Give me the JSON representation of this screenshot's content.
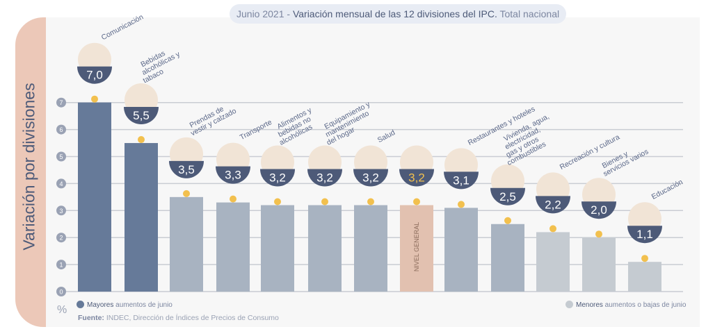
{
  "title": {
    "date": "Junio 2021 - ",
    "main": "Variación mensual de las 12 divisiones del IPC.",
    "scope": " Total nacional"
  },
  "chart_data": {
    "type": "bar",
    "title": "Junio 2021 - Variación mensual de las 12 divisiones del IPC. Total nacional",
    "ylabel": "Variación por divisiones",
    "unit": "%",
    "ylim": [
      0,
      7
    ],
    "yticks": [
      "0",
      "1",
      "2",
      "3",
      "4",
      "5",
      "6",
      "7"
    ],
    "grid": true,
    "categories": [
      "Comunicación",
      "Bebidas alcohólicas y tabaco",
      "Prendas de vestir y calzado",
      "Transporte",
      "Alimentos y bebidas no alcohólicas",
      "Equipamiento y mantenimiento del hogar",
      "Salud",
      "NIVEL GENERAL",
      "Restaurantes y hoteles",
      "Vivienda, agua, electricidad, gas y otros combustibles",
      "Recreación y cultura",
      "Bienes y servicios varios",
      "Educación"
    ],
    "values": [
      7.0,
      5.5,
      3.5,
      3.3,
      3.2,
      3.2,
      3.2,
      3.2,
      3.1,
      2.5,
      2.2,
      2.0,
      1.1
    ],
    "value_labels": [
      "7,0",
      "5,5",
      "3,5",
      "3,3",
      "3,2",
      "3,2",
      "3,2",
      "3,2",
      "3,1",
      "2,5",
      "2,2",
      "2,0",
      "1,1"
    ],
    "group": [
      "mayores",
      "mayores",
      "medio",
      "medio",
      "medio",
      "medio",
      "medio",
      "general",
      "medio",
      "medio",
      "menores",
      "menores",
      "menores"
    ],
    "icons": [
      "phone-icon",
      "bottle-icon",
      "shirt-icon",
      "bus-icon",
      "chicken-icon",
      "oven-icon",
      "medical-cross-icon",
      "shopping-bag-icon",
      "plate-cutlery-icon",
      "lightbulb-icon",
      "umbrella-icon",
      "comb-scissors-icon",
      "notebook-icon"
    ],
    "colors": {
      "mayores": "#667a99",
      "medio": "#a8b3c1",
      "menores": "#c5cbd1",
      "general": "#e2c1b0",
      "badge": "#4d5a78",
      "dot": "#f2c04e"
    },
    "legend": [
      {
        "bold": "Mayores",
        "text": " aumentos de junio"
      },
      {
        "bold": "Menores",
        "text": " aumentos o bajas de junio"
      }
    ],
    "legend_placement": "bottom"
  },
  "source": {
    "label": "Fuente:",
    "text": " INDEC, Dirección de Índices de Precios de Consumo"
  }
}
